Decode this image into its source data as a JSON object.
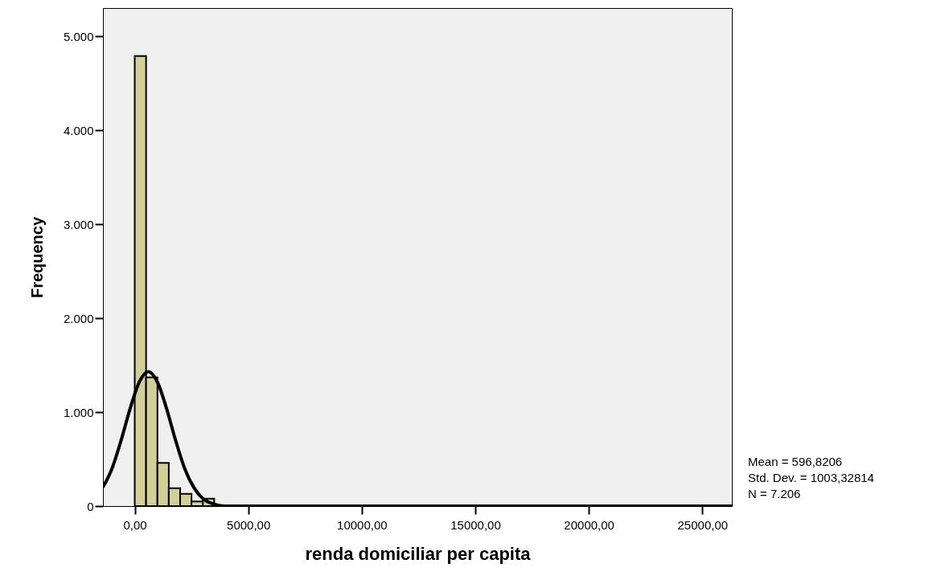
{
  "chart_data": {
    "type": "histogram",
    "xlabel": "renda domiciliar per capita",
    "ylabel": "Frequency",
    "bins": [
      0,
      500,
      1000,
      1500,
      2000,
      2500,
      3000,
      3500,
      4000,
      4500,
      5000,
      5500
    ],
    "values": [
      4790,
      1370,
      460,
      190,
      130,
      50,
      80,
      null,
      null,
      null,
      null
    ],
    "color": "#d3cf98",
    "series": [
      {
        "type": "line",
        "color": "#000000",
        "x": [
          -1400,
          -1000,
          -600,
          -200,
          200,
          597,
          1000,
          1400,
          1800,
          2200,
          2600,
          3000,
          3500,
          4000,
          5000,
          26300
        ],
        "values": [
          200,
          400,
          700,
          1040,
          1320,
          1430,
          1320,
          1040,
          700,
          400,
          200,
          80,
          20,
          0,
          0,
          0
        ]
      }
    ],
    "xlim": [
      -1400,
      26300
    ],
    "xticks": [
      {
        "value": 0,
        "label": "0,00"
      },
      {
        "value": 5000,
        "label": "5000,00"
      },
      {
        "value": 10000,
        "label": "10000,00"
      },
      {
        "value": 15000,
        "label": "15000,00"
      },
      {
        "value": 20000,
        "label": "20000,00"
      },
      {
        "value": 25000,
        "label": "25000,00"
      }
    ],
    "ylim": [
      0,
      5300
    ],
    "yticks": [
      0,
      {
        "value": 1000,
        "label": "1.000"
      },
      {
        "value": 2000,
        "label": "2.000"
      },
      {
        "value": 3000,
        "label": "3.000"
      },
      {
        "value": 4000,
        "label": "4.000"
      },
      {
        "value": 5000,
        "label": "5.000"
      }
    ],
    "grid": false,
    "annotations": [
      "Mean = 596,8206",
      "Std. Dev. = 1003,32814",
      "N = 7.206"
    ]
  }
}
